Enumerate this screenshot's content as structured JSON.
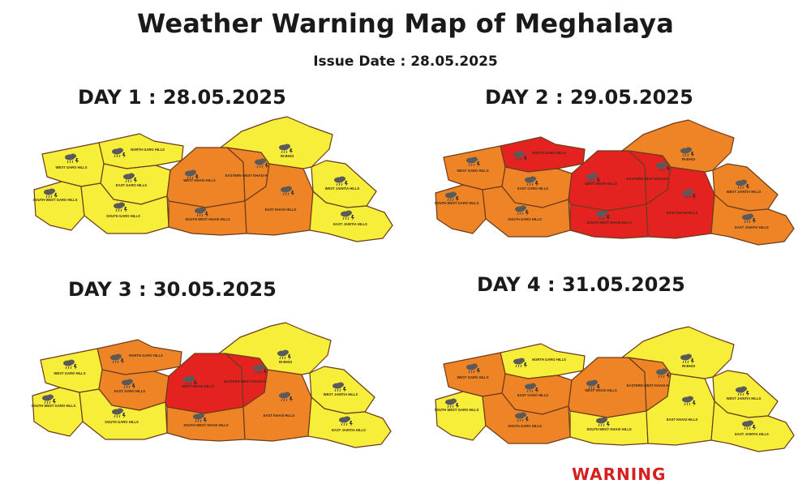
{
  "title": "Weather Warning Map of Meghalaya",
  "issue_date": "Issue Date : 28.05.2025",
  "legend_cutoff_text": "WARNING",
  "colors": {
    "yellow": "#f7ee3a",
    "orange": "#ef8427",
    "red": "#e42321",
    "border": "#6a3c1c"
  },
  "district_labels": {
    "north_garo": "NORTH GARO HILLS",
    "west_garo": "WEST GARO HILLS",
    "south_west_garo": "SOUTH WEST GARO HILLS",
    "east_garo": "EAST GARO HILLS",
    "south_garo": "SOUTH GARO HILLS",
    "west_khasi": "WEST KHASI HILLS",
    "eastern_west_khasi": "EASTERN WEST KHASI HILLS",
    "south_west_khasi": "SOUTH WEST KHASI HILLS",
    "east_khasi": "EAST KHASI HILLS",
    "ri_bhoi": "RI-BHOI",
    "west_jaintia": "WEST JAINTIA HILLS",
    "east_jaintia": "EAST JAINTIA HILLS"
  },
  "days": [
    {
      "label": "DAY 1 : 28.05.2025",
      "warnings": {
        "north_garo": "yellow",
        "west_garo": "yellow",
        "south_west_garo": "yellow",
        "east_garo": "yellow",
        "south_garo": "yellow",
        "west_khasi": "orange",
        "eastern_west_khasi": "orange",
        "south_west_khasi": "orange",
        "east_khasi": "orange",
        "ri_bhoi": "yellow",
        "west_jaintia": "yellow",
        "east_jaintia": "yellow"
      }
    },
    {
      "label": "DAY 2 : 29.05.2025",
      "warnings": {
        "north_garo": "red",
        "west_garo": "orange",
        "south_west_garo": "orange",
        "east_garo": "orange",
        "south_garo": "orange",
        "west_khasi": "red",
        "eastern_west_khasi": "red",
        "south_west_khasi": "red",
        "east_khasi": "red",
        "ri_bhoi": "orange",
        "west_jaintia": "orange",
        "east_jaintia": "orange"
      }
    },
    {
      "label": "DAY 3 :  30.05.2025",
      "warnings": {
        "north_garo": "orange",
        "west_garo": "yellow",
        "south_west_garo": "yellow",
        "east_garo": "orange",
        "south_garo": "yellow",
        "west_khasi": "red",
        "eastern_west_khasi": "red",
        "south_west_khasi": "orange",
        "east_khasi": "orange",
        "ri_bhoi": "yellow",
        "west_jaintia": "yellow",
        "east_jaintia": "yellow"
      }
    },
    {
      "label": "DAY 4 :  31.05.2025",
      "warnings": {
        "north_garo": "yellow",
        "west_garo": "orange",
        "south_west_garo": "yellow",
        "east_garo": "orange",
        "south_garo": "orange",
        "west_khasi": "orange",
        "eastern_west_khasi": "orange",
        "south_west_khasi": "yellow",
        "east_khasi": "yellow",
        "ri_bhoi": "yellow",
        "west_jaintia": "yellow",
        "east_jaintia": "yellow"
      }
    }
  ]
}
